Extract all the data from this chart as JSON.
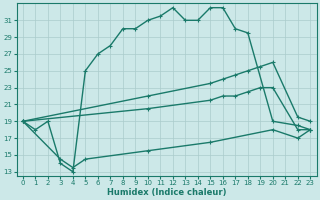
{
  "line1_x": [
    0,
    1,
    2,
    3,
    4,
    5,
    6,
    7,
    8,
    9,
    10,
    11,
    12,
    13,
    14,
    15,
    16,
    17,
    18,
    20,
    22,
    23
  ],
  "line1_y": [
    19,
    18,
    19,
    14,
    13,
    25,
    27,
    28,
    30,
    30,
    31,
    31.5,
    32.5,
    31,
    31,
    32.5,
    32.5,
    30,
    29.5,
    19,
    18.5,
    18
  ],
  "line2_x": [
    0,
    10,
    15,
    16,
    17,
    18,
    19,
    20,
    22,
    23
  ],
  "line2_y": [
    19,
    22,
    23.5,
    24,
    24.5,
    25,
    25.5,
    26,
    19.5,
    19
  ],
  "line3_x": [
    0,
    10,
    15,
    16,
    17,
    18,
    19,
    20,
    22,
    23
  ],
  "line3_y": [
    19,
    20.5,
    21.5,
    22,
    22,
    22.5,
    23,
    23,
    18,
    18
  ],
  "line4_x": [
    0,
    3,
    4,
    5,
    10,
    15,
    20,
    22,
    23
  ],
  "line4_y": [
    19,
    14.5,
    13.5,
    14.5,
    15.5,
    16.5,
    18,
    17,
    18
  ],
  "line_color": "#1a7a6a",
  "bg_color": "#cce8e8",
  "grid_color": "#aacccc",
  "xlabel": "Humidex (Indice chaleur)",
  "ylim": [
    12.5,
    33
  ],
  "xlim": [
    -0.5,
    23.5
  ],
  "yticks": [
    13,
    15,
    17,
    19,
    21,
    23,
    25,
    27,
    29,
    31
  ],
  "xticks": [
    0,
    1,
    2,
    3,
    4,
    5,
    6,
    7,
    8,
    9,
    10,
    11,
    12,
    13,
    14,
    15,
    16,
    17,
    18,
    19,
    20,
    21,
    22,
    23
  ],
  "marker": "+",
  "markersize": 3.5,
  "linewidth": 1.0,
  "tick_fontsize": 5.0,
  "xlabel_fontsize": 6.0
}
